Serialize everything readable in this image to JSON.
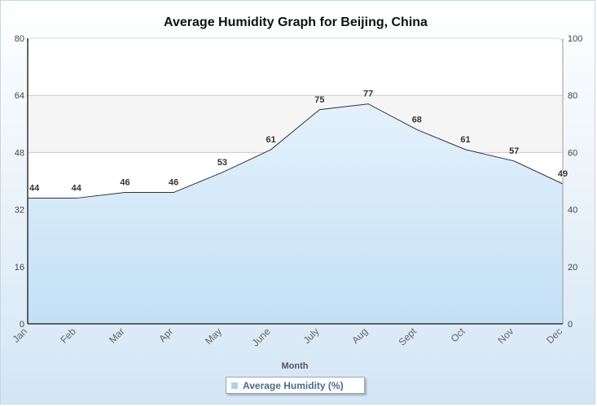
{
  "chart_data": {
    "type": "area",
    "title": "Average Humidity Graph for Beijing, China",
    "xlabel": "Month",
    "categories": [
      "Jan",
      "Feb",
      "Mar",
      "Apr",
      "May",
      "June",
      "July",
      "Aug",
      "Sept",
      "Oct",
      "Nov",
      "Dec"
    ],
    "series": [
      {
        "name": "Average Humidity (%)",
        "values": [
          44,
          44,
          46,
          46,
          53,
          61,
          75,
          77,
          68,
          61,
          57,
          49
        ],
        "axis": "right"
      }
    ],
    "left_axis": {
      "ylim": [
        0,
        80
      ],
      "ticks": [
        0,
        16,
        32,
        48,
        64,
        80
      ]
    },
    "right_axis": {
      "ylim": [
        0,
        100
      ],
      "ticks": [
        0,
        20,
        40,
        60,
        80,
        100
      ]
    },
    "grid": true,
    "legend": "bottom-center",
    "colors": {
      "area": "#c3e0f6",
      "line": "#333333",
      "band": "#f5f5f5"
    }
  }
}
